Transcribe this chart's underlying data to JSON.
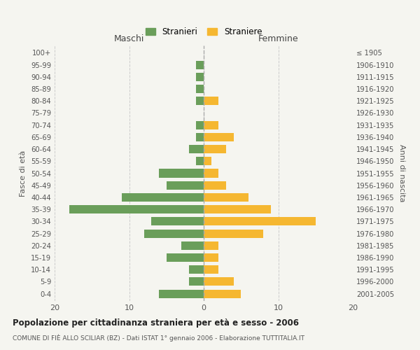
{
  "age_groups": [
    "0-4",
    "5-9",
    "10-14",
    "15-19",
    "20-24",
    "25-29",
    "30-34",
    "35-39",
    "40-44",
    "45-49",
    "50-54",
    "55-59",
    "60-64",
    "65-69",
    "70-74",
    "75-79",
    "80-84",
    "85-89",
    "90-94",
    "95-99",
    "100+"
  ],
  "birth_years": [
    "2001-2005",
    "1996-2000",
    "1991-1995",
    "1986-1990",
    "1981-1985",
    "1976-1980",
    "1971-1975",
    "1966-1970",
    "1961-1965",
    "1956-1960",
    "1951-1955",
    "1946-1950",
    "1941-1945",
    "1936-1940",
    "1931-1935",
    "1926-1930",
    "1921-1925",
    "1916-1920",
    "1911-1915",
    "1906-1910",
    "≤ 1905"
  ],
  "males": [
    6,
    2,
    2,
    5,
    3,
    8,
    7,
    18,
    11,
    5,
    6,
    1,
    2,
    1,
    1,
    0,
    1,
    1,
    1,
    1,
    0
  ],
  "females": [
    5,
    4,
    2,
    2,
    2,
    8,
    15,
    9,
    6,
    3,
    2,
    1,
    3,
    4,
    2,
    0,
    2,
    0,
    0,
    0,
    0
  ],
  "male_color": "#6a9e5a",
  "female_color": "#f5b731",
  "title": "Popolazione per cittadinanza straniera per età e sesso - 2006",
  "subtitle": "COMUNE DI FIÈ ALLO SCILIAR (BZ) - Dati ISTAT 1° gennaio 2006 - Elaborazione TUTTITALIA.IT",
  "xlabel_left": "Maschi",
  "xlabel_right": "Femmine",
  "ylabel_left": "Fasce di età",
  "ylabel_right": "Anni di nascita",
  "legend_male": "Stranieri",
  "legend_female": "Straniere",
  "xlim": 20,
  "background_color": "#f5f5f0",
  "grid_color": "#cccccc"
}
